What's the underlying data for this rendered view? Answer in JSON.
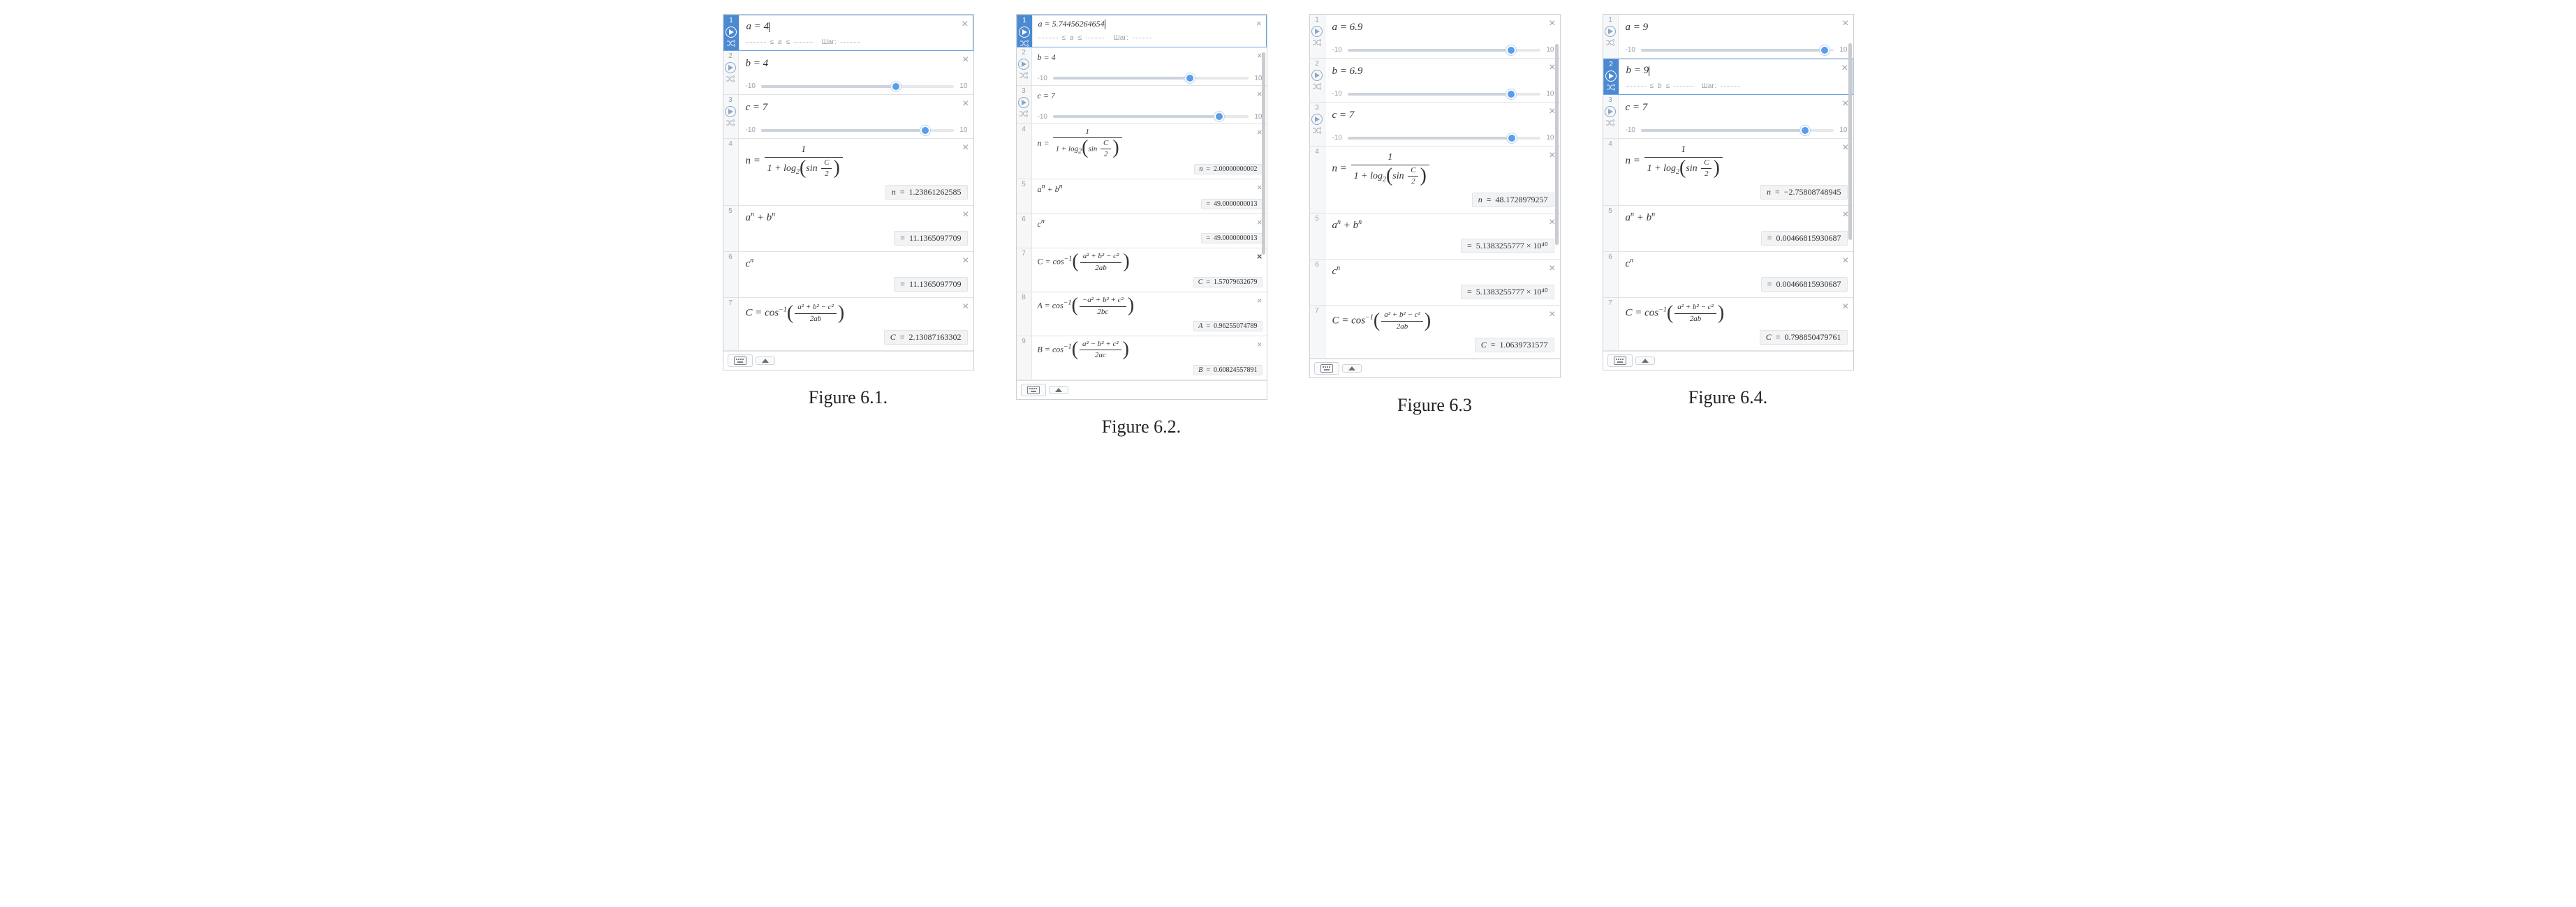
{
  "colors": {
    "accent": "#5a9de8",
    "border": "#d0d0d0",
    "gutterActive": "#4b89d1",
    "result_bg": "#f1f3f5",
    "text": "#333333",
    "muted": "#9aa0a6"
  },
  "captions": [
    "Figure 6.1.",
    "Figure 6.2.",
    "Figure 6.3",
    "Figure 6.4."
  ],
  "slider": {
    "min": "-10",
    "max": "10"
  },
  "step_label": "Шаг:",
  "formula_labels": {
    "n_frac_num": "1",
    "sin_label": "sin",
    "C_over_2_num": "C",
    "C_over_2_den": "2",
    "log_base": "2",
    "anbn": "aⁿ + bⁿ",
    "cn": "cⁿ",
    "cos_inv": "cos",
    "cos_inv_sup": "−1",
    "C_frac_num": "a² + b² − c²",
    "C_frac_den": "2ab",
    "A_frac_num": "−a² + b² + c²",
    "A_frac_den": "2bc",
    "B_frac_num": "a² − b² + c²",
    "B_frac_den": "2ac"
  },
  "panels": [
    {
      "id": "p1",
      "scale": "normal",
      "scroll": null,
      "rows": [
        {
          "idx": "1",
          "kind": "define_active",
          "var": "a",
          "val": "4"
        },
        {
          "idx": "2",
          "kind": "slider",
          "var": "b",
          "val": "4",
          "thumb_pct": 70
        },
        {
          "idx": "3",
          "kind": "slider",
          "var": "c",
          "val": "7",
          "thumb_pct": 85
        },
        {
          "idx": "4",
          "kind": "n_formula",
          "result_var": "n",
          "result_val": "1.23861262585"
        },
        {
          "idx": "5",
          "kind": "anbn",
          "result_val": "11.1365097709"
        },
        {
          "idx": "6",
          "kind": "cn",
          "result_val": "11.1365097709"
        },
        {
          "idx": "7",
          "kind": "C_formula",
          "result_var": "C",
          "result_val": "2.13087163302"
        }
      ],
      "footer": true
    },
    {
      "id": "p2",
      "scale": "micro",
      "scroll": {
        "top_pct": 8,
        "height_pct": 55
      },
      "rows": [
        {
          "idx": "1",
          "kind": "define_active",
          "var": "a",
          "val": "5.74456264654"
        },
        {
          "idx": "2",
          "kind": "slider",
          "var": "b",
          "val": "4",
          "thumb_pct": 70
        },
        {
          "idx": "3",
          "kind": "slider",
          "var": "c",
          "val": "7",
          "thumb_pct": 85
        },
        {
          "idx": "4",
          "kind": "n_formula",
          "result_var": "n",
          "result_val": "2.00000000002"
        },
        {
          "idx": "5",
          "kind": "anbn",
          "result_val": "49.0000000013"
        },
        {
          "idx": "6",
          "kind": "cn",
          "result_val": "49.0000000013"
        },
        {
          "idx": "7",
          "kind": "C_formula",
          "result_var": "C",
          "result_val": "1.57079632679",
          "bold_close": true
        },
        {
          "idx": "8",
          "kind": "A_formula",
          "result_var": "A",
          "result_val": "0.96255074789"
        },
        {
          "idx": "9",
          "kind": "B_formula",
          "result_var": "B",
          "result_val": "0.60824557891"
        }
      ],
      "footer": true,
      "footer_small": true
    },
    {
      "id": "p3",
      "scale": "normal",
      "scroll": {
        "top_pct": 6,
        "height_pct": 58
      },
      "rows": [
        {
          "idx": "1",
          "kind": "slider",
          "var": "a",
          "val": "6.9",
          "thumb_pct": 84.5
        },
        {
          "idx": "2",
          "kind": "slider",
          "var": "b",
          "val": "6.9",
          "thumb_pct": 84.5
        },
        {
          "idx": "3",
          "kind": "slider",
          "var": "c",
          "val": "7",
          "thumb_pct": 85
        },
        {
          "idx": "4",
          "kind": "n_formula",
          "result_var": "n",
          "result_val": "48.1728979257"
        },
        {
          "idx": "5",
          "kind": "anbn",
          "result_val": "5.1383255777 × 10⁴⁰"
        },
        {
          "idx": "6",
          "kind": "cn",
          "result_val": "5.1383255777 × 10⁴⁰"
        },
        {
          "idx": "7",
          "kind": "C_formula",
          "result_var": "C",
          "result_val": "1.0639731577"
        }
      ],
      "footer": true
    },
    {
      "id": "p4",
      "scale": "normal",
      "scroll": {
        "top_pct": 6,
        "height_pct": 58
      },
      "rows": [
        {
          "idx": "1",
          "kind": "slider",
          "var": "a",
          "val": "9",
          "thumb_pct": 95
        },
        {
          "idx": "2",
          "kind": "define_active",
          "var": "b",
          "val": "9"
        },
        {
          "idx": "3",
          "kind": "slider",
          "var": "c",
          "val": "7",
          "thumb_pct": 85
        },
        {
          "idx": "4",
          "kind": "n_formula",
          "result_var": "n",
          "result_val": "−2.75808748945"
        },
        {
          "idx": "5",
          "kind": "anbn",
          "result_val": "0.00466815930687"
        },
        {
          "idx": "6",
          "kind": "cn",
          "result_val": "0.00466815930687"
        },
        {
          "idx": "7",
          "kind": "C_formula",
          "result_var": "C",
          "result_val": "0.798850479761"
        }
      ],
      "footer": true
    }
  ]
}
